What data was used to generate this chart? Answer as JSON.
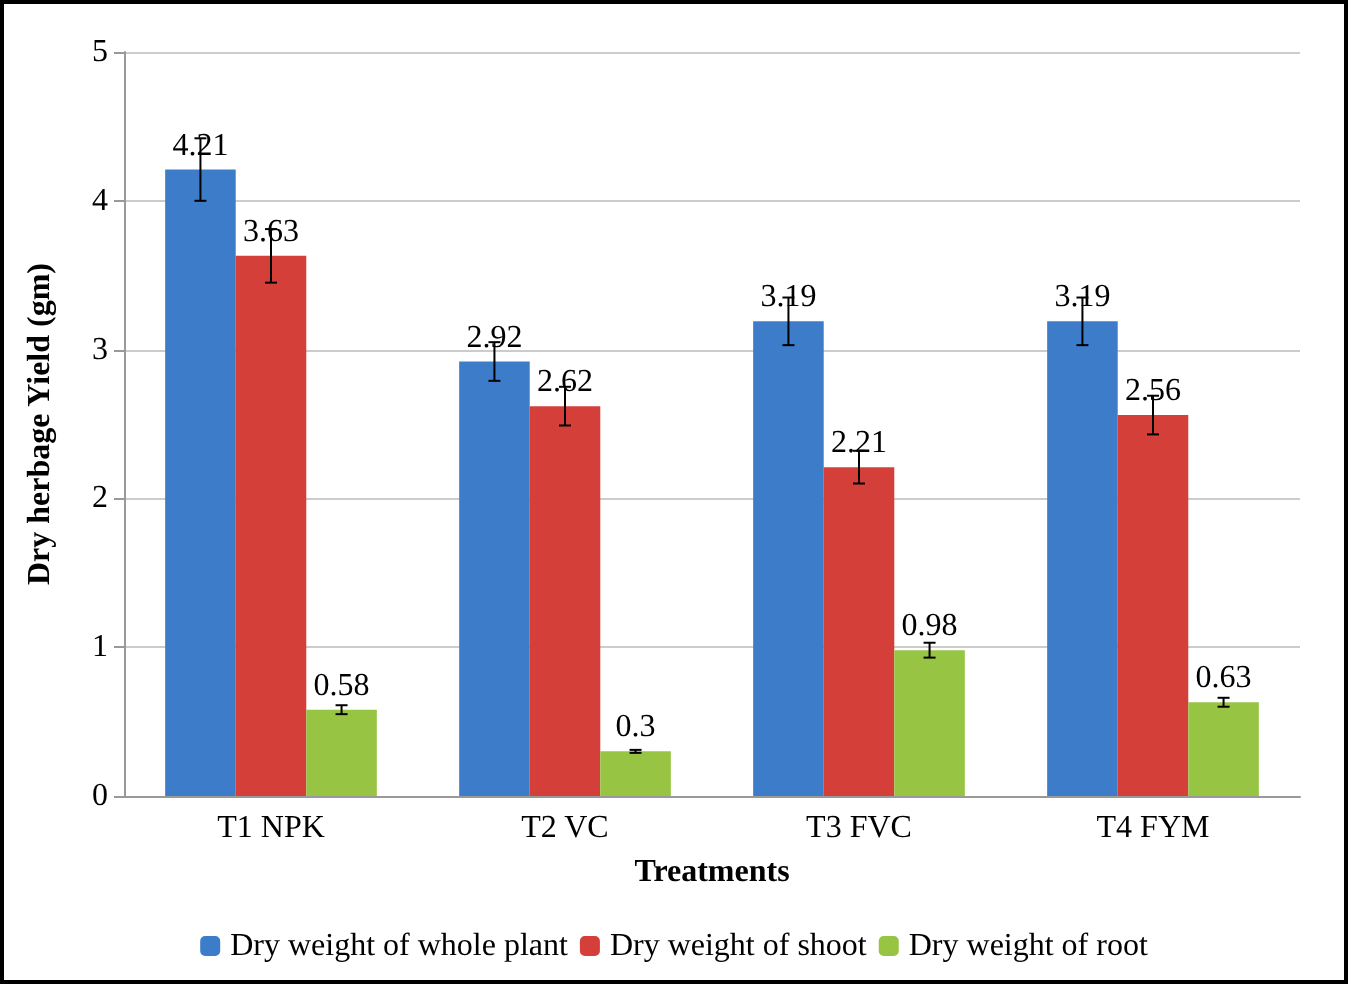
{
  "chart_data": {
    "type": "bar",
    "xlabel": "Treatments",
    "ylabel": "Dry herbage Yield (gm)",
    "categories": [
      "T1 NPK",
      "T2 VC",
      "T3 FVC",
      "T4 FYM"
    ],
    "series": [
      {
        "name": "Dry weight of whole plant",
        "color": "#3d7cc9",
        "values": [
          4.21,
          2.92,
          3.19,
          3.19
        ],
        "errors": [
          0.21,
          0.13,
          0.16,
          0.16
        ]
      },
      {
        "name": "Dry weight of shoot",
        "color": "#d43f3a",
        "values": [
          3.63,
          2.62,
          2.21,
          2.56
        ],
        "errors": [
          0.18,
          0.13,
          0.11,
          0.13
        ]
      },
      {
        "name": "Dry weight of root",
        "color": "#98c444",
        "values": [
          0.58,
          0.3,
          0.98,
          0.63
        ],
        "errors": [
          0.03,
          0.01,
          0.05,
          0.03
        ]
      }
    ],
    "ylim": [
      0,
      5
    ],
    "yticks": [
      0,
      1,
      2,
      3,
      4,
      5
    ],
    "grid": "y",
    "legend": "bottom",
    "data_labels": true
  }
}
